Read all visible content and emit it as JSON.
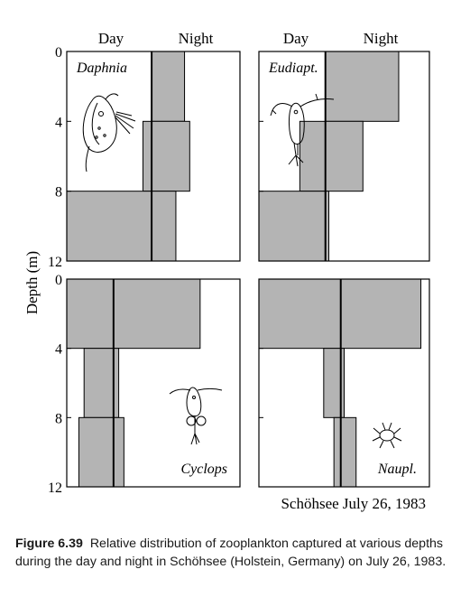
{
  "figure": {
    "source_label": "Schöhsee July 26, 1983",
    "caption_label": "Figure 6.39",
    "caption_text": "Relative distribution of zooplankton captured at various depths during the day and night in Schöhsee (Holstein, Germany) on July 26, 1983.",
    "colors": {
      "fill": "#b4b4b4",
      "stroke": "#000000"
    },
    "y_axis_title": "Depth (m)",
    "column_headers": [
      "Day",
      "Night"
    ]
  },
  "chart_data": [
    {
      "type": "bar",
      "orientation": "horizontal",
      "title": "Daphnia",
      "series_labels": [
        "Day",
        "Night"
      ],
      "depth_bins": [
        "0-4",
        "4-8",
        "8-12"
      ],
      "ylabel": "Depth (m)",
      "ylim": [
        0,
        12
      ],
      "yticks": [
        0,
        4,
        8,
        12
      ],
      "day": [
        0,
        5,
        49
      ],
      "night": [
        19,
        22,
        14
      ],
      "grid": false
    },
    {
      "type": "bar",
      "orientation": "horizontal",
      "title": "Eudiapt.",
      "series_labels": [
        "Day",
        "Night"
      ],
      "depth_bins": [
        "0-4",
        "4-8",
        "8-12"
      ],
      "ylabel": "Depth (m)",
      "ylim": [
        0,
        12
      ],
      "yticks": [
        0,
        4,
        8,
        12
      ],
      "day": [
        0,
        15,
        39
      ],
      "night": [
        43,
        22,
        2
      ],
      "grid": false
    },
    {
      "type": "bar",
      "orientation": "horizontal",
      "title": "Cyclops",
      "series_labels": [
        "Day",
        "Night"
      ],
      "depth_bins": [
        "0-4",
        "4-8",
        "8-12"
      ],
      "ylabel": "Depth (m)",
      "ylim": [
        0,
        12
      ],
      "yticks": [
        0,
        4,
        8,
        12
      ],
      "day": [
        27,
        17,
        20
      ],
      "night": [
        50,
        3,
        6
      ],
      "grid": false
    },
    {
      "type": "bar",
      "orientation": "horizontal",
      "title": "Naupl.",
      "series_labels": [
        "Day",
        "Night"
      ],
      "depth_bins": [
        "0-4",
        "4-8",
        "8-12"
      ],
      "ylabel": "Depth (m)",
      "ylim": [
        0,
        12
      ],
      "yticks": [
        0,
        4,
        8,
        12
      ],
      "day": [
        48,
        10,
        4
      ],
      "night": [
        47,
        2,
        9
      ],
      "grid": false
    }
  ]
}
